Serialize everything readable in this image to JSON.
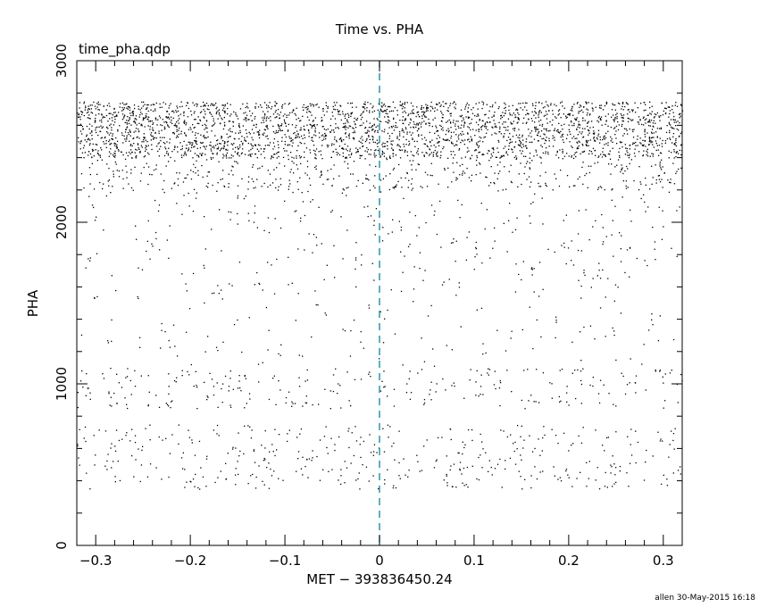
{
  "chart_data": {
    "type": "scatter",
    "title": "Time vs. PHA",
    "subtitle": "time_pha.qdp",
    "xlabel": "MET − 393836450.24",
    "ylabel": "PHA",
    "xlim": [
      -0.32,
      0.32
    ],
    "ylim": [
      0,
      3000
    ],
    "x_ticks": [
      -0.3,
      -0.2,
      -0.1,
      0,
      0.1,
      0.2,
      0.3
    ],
    "x_tick_labels": [
      "−0.3",
      "−0.2",
      "−0.1",
      "0",
      "0.1",
      "0.2",
      "0.3"
    ],
    "y_ticks": [
      0,
      1000,
      2000,
      3000
    ],
    "y_tick_labels": [
      "0",
      "1000",
      "2000",
      "3000"
    ],
    "reference_line": {
      "x": 0,
      "style": "dashed",
      "color": "#1a8fa0"
    },
    "grid": false,
    "series": [
      {
        "marker": "dot",
        "color": "#000000",
        "density_bands": [
          {
            "y_range": [
              2400,
              2750
            ],
            "points": 2800
          },
          {
            "y_range": [
              2200,
              2400
            ],
            "points": 420
          },
          {
            "y_range": [
              1700,
              2200
            ],
            "points": 260
          },
          {
            "y_range": [
              1100,
              1700
            ],
            "points": 180
          },
          {
            "y_range": [
              850,
              1100
            ],
            "points": 260
          },
          {
            "y_range": [
              350,
              750
            ],
            "points": 420
          }
        ]
      }
    ]
  },
  "footer": {
    "credit": "allen 30-May-2015 16:18"
  }
}
